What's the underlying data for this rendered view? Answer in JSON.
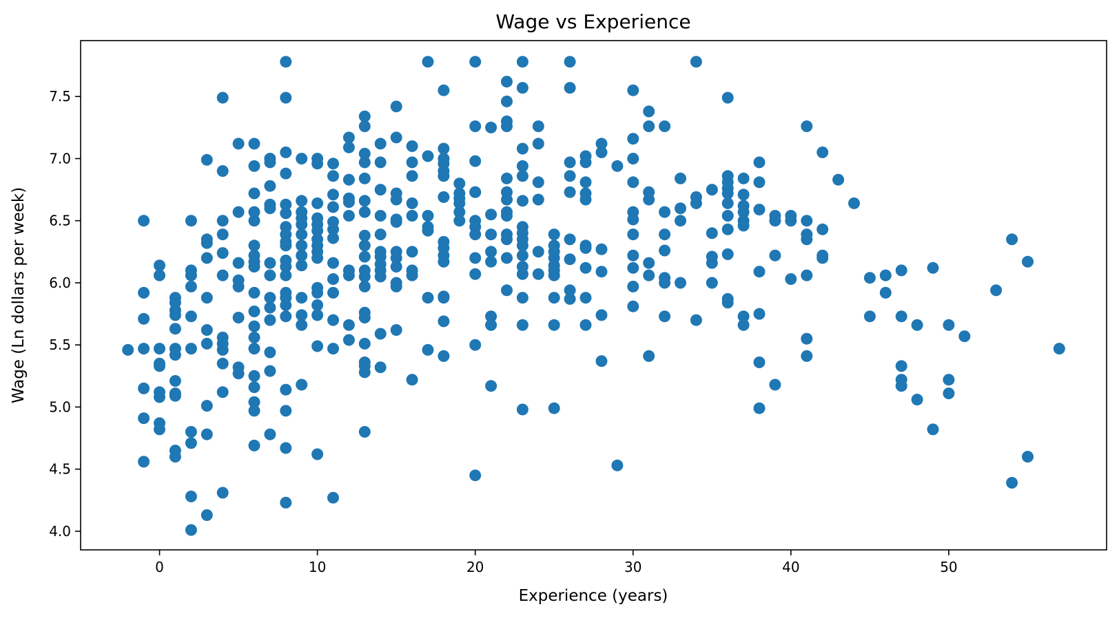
{
  "chart_data": {
    "type": "scatter",
    "title": "Wage vs Experience",
    "xlabel": "Experience (years)",
    "ylabel": "Wage (Ln dollars per week)",
    "xlim": [
      -5,
      60
    ],
    "ylim": [
      3.85,
      7.95
    ],
    "xticks": [
      0,
      10,
      20,
      30,
      40,
      50
    ],
    "yticks": [
      4.0,
      4.5,
      5.0,
      5.5,
      6.0,
      6.5,
      7.0,
      7.5
    ],
    "grid": false,
    "marker_color": "#1f77b4",
    "points": [
      [
        -2,
        5.46
      ],
      [
        -1,
        6.5
      ],
      [
        -1,
        5.92
      ],
      [
        -1,
        5.71
      ],
      [
        -1,
        5.47
      ],
      [
        -1,
        5.15
      ],
      [
        -1,
        4.91
      ],
      [
        -1,
        4.56
      ],
      [
        0,
        6.14
      ],
      [
        0,
        6.06
      ],
      [
        0,
        5.47
      ],
      [
        0,
        5.35
      ],
      [
        0,
        5.33
      ],
      [
        0,
        5.12
      ],
      [
        0,
        5.08
      ],
      [
        0,
        4.87
      ],
      [
        0,
        4.82
      ],
      [
        1,
        5.88
      ],
      [
        1,
        5.84
      ],
      [
        1,
        5.78
      ],
      [
        1,
        5.74
      ],
      [
        1,
        5.63
      ],
      [
        1,
        5.47
      ],
      [
        1,
        5.42
      ],
      [
        1,
        5.21
      ],
      [
        1,
        5.11
      ],
      [
        1,
        5.09
      ],
      [
        1,
        4.65
      ],
      [
        1,
        4.6
      ],
      [
        2,
        6.5
      ],
      [
        2,
        6.1
      ],
      [
        2,
        6.06
      ],
      [
        2,
        5.97
      ],
      [
        2,
        5.73
      ],
      [
        2,
        5.47
      ],
      [
        2,
        4.8
      ],
      [
        2,
        4.71
      ],
      [
        2,
        4.28
      ],
      [
        2,
        4.01
      ],
      [
        3,
        6.99
      ],
      [
        3,
        6.35
      ],
      [
        3,
        6.32
      ],
      [
        3,
        6.2
      ],
      [
        3,
        5.88
      ],
      [
        3,
        5.62
      ],
      [
        3,
        5.51
      ],
      [
        3,
        5.01
      ],
      [
        3,
        4.78
      ],
      [
        3,
        4.13
      ],
      [
        4,
        7.49
      ],
      [
        4,
        6.9
      ],
      [
        4,
        6.5
      ],
      [
        4,
        6.39
      ],
      [
        4,
        6.24
      ],
      [
        4,
        6.06
      ],
      [
        4,
        5.56
      ],
      [
        4,
        5.51
      ],
      [
        4,
        5.46
      ],
      [
        4,
        5.35
      ],
      [
        4,
        5.12
      ],
      [
        4,
        4.31
      ],
      [
        5,
        7.12
      ],
      [
        5,
        6.57
      ],
      [
        5,
        6.16
      ],
      [
        5,
        6.02
      ],
      [
        5,
        5.97
      ],
      [
        5,
        5.72
      ],
      [
        5,
        5.32
      ],
      [
        5,
        5.27
      ],
      [
        6,
        7.12
      ],
      [
        6,
        6.94
      ],
      [
        6,
        6.72
      ],
      [
        6,
        6.57
      ],
      [
        6,
        6.5
      ],
      [
        6,
        6.3
      ],
      [
        6,
        6.22
      ],
      [
        6,
        6.17
      ],
      [
        6,
        6.13
      ],
      [
        6,
        5.92
      ],
      [
        6,
        5.77
      ],
      [
        6,
        5.65
      ],
      [
        6,
        5.56
      ],
      [
        6,
        5.47
      ],
      [
        6,
        5.25
      ],
      [
        6,
        5.16
      ],
      [
        6,
        5.04
      ],
      [
        6,
        4.97
      ],
      [
        6,
        4.69
      ],
      [
        7,
        7.0
      ],
      [
        7,
        6.97
      ],
      [
        7,
        6.78
      ],
      [
        7,
        6.63
      ],
      [
        7,
        6.6
      ],
      [
        7,
        6.16
      ],
      [
        7,
        6.06
      ],
      [
        7,
        5.88
      ],
      [
        7,
        5.8
      ],
      [
        7,
        5.7
      ],
      [
        7,
        5.44
      ],
      [
        7,
        5.29
      ],
      [
        7,
        4.78
      ],
      [
        8,
        7.78
      ],
      [
        8,
        7.49
      ],
      [
        8,
        7.05
      ],
      [
        8,
        6.88
      ],
      [
        8,
        6.63
      ],
      [
        8,
        6.56
      ],
      [
        8,
        6.45
      ],
      [
        8,
        6.39
      ],
      [
        8,
        6.33
      ],
      [
        8,
        6.3
      ],
      [
        8,
        6.18
      ],
      [
        8,
        6.13
      ],
      [
        8,
        6.06
      ],
      [
        8,
        5.92
      ],
      [
        8,
        5.88
      ],
      [
        8,
        5.82
      ],
      [
        8,
        5.73
      ],
      [
        8,
        5.14
      ],
      [
        8,
        4.97
      ],
      [
        8,
        4.67
      ],
      [
        8,
        4.23
      ],
      [
        9,
        7.0
      ],
      [
        9,
        6.66
      ],
      [
        9,
        6.57
      ],
      [
        9,
        6.52
      ],
      [
        9,
        6.47
      ],
      [
        9,
        6.39
      ],
      [
        9,
        6.3
      ],
      [
        9,
        6.22
      ],
      [
        9,
        6.14
      ],
      [
        9,
        5.88
      ],
      [
        9,
        5.74
      ],
      [
        9,
        5.66
      ],
      [
        9,
        5.18
      ],
      [
        10,
        7.0
      ],
      [
        10,
        6.96
      ],
      [
        10,
        6.64
      ],
      [
        10,
        6.52
      ],
      [
        10,
        6.47
      ],
      [
        10,
        6.42
      ],
      [
        10,
        6.35
      ],
      [
        10,
        6.3
      ],
      [
        10,
        6.25
      ],
      [
        10,
        6.2
      ],
      [
        10,
        5.96
      ],
      [
        10,
        5.92
      ],
      [
        10,
        5.82
      ],
      [
        10,
        5.74
      ],
      [
        10,
        5.49
      ],
      [
        10,
        4.62
      ],
      [
        11,
        6.96
      ],
      [
        11,
        6.86
      ],
      [
        11,
        6.71
      ],
      [
        11,
        6.61
      ],
      [
        11,
        6.49
      ],
      [
        11,
        6.43
      ],
      [
        11,
        6.36
      ],
      [
        11,
        6.16
      ],
      [
        11,
        6.03
      ],
      [
        11,
        5.92
      ],
      [
        11,
        5.7
      ],
      [
        11,
        5.47
      ],
      [
        11,
        4.27
      ],
      [
        12,
        7.17
      ],
      [
        12,
        7.09
      ],
      [
        12,
        6.83
      ],
      [
        12,
        6.68
      ],
      [
        12,
        6.65
      ],
      [
        12,
        6.54
      ],
      [
        12,
        6.1
      ],
      [
        12,
        6.06
      ],
      [
        12,
        5.66
      ],
      [
        12,
        5.54
      ],
      [
        13,
        7.34
      ],
      [
        13,
        7.26
      ],
      [
        13,
        7.04
      ],
      [
        13,
        6.97
      ],
      [
        13,
        6.84
      ],
      [
        13,
        6.66
      ],
      [
        13,
        6.57
      ],
      [
        13,
        6.38
      ],
      [
        13,
        6.3
      ],
      [
        13,
        6.21
      ],
      [
        13,
        6.1
      ],
      [
        13,
        6.05
      ],
      [
        13,
        5.97
      ],
      [
        13,
        5.76
      ],
      [
        13,
        5.72
      ],
      [
        13,
        5.51
      ],
      [
        13,
        5.36
      ],
      [
        13,
        5.33
      ],
      [
        13,
        5.28
      ],
      [
        13,
        4.8
      ],
      [
        14,
        7.12
      ],
      [
        14,
        6.97
      ],
      [
        14,
        6.75
      ],
      [
        14,
        6.54
      ],
      [
        14,
        6.39
      ],
      [
        14,
        6.25
      ],
      [
        14,
        6.21
      ],
      [
        14,
        6.15
      ],
      [
        14,
        6.1
      ],
      [
        14,
        6.05
      ],
      [
        14,
        5.59
      ],
      [
        14,
        5.32
      ],
      [
        15,
        7.42
      ],
      [
        15,
        7.17
      ],
      [
        15,
        6.72
      ],
      [
        15,
        6.67
      ],
      [
        15,
        6.51
      ],
      [
        15,
        6.49
      ],
      [
        15,
        6.25
      ],
      [
        15,
        6.2
      ],
      [
        15,
        6.13
      ],
      [
        15,
        6.0
      ],
      [
        15,
        5.97
      ],
      [
        15,
        5.62
      ],
      [
        16,
        7.1
      ],
      [
        16,
        6.97
      ],
      [
        16,
        6.86
      ],
      [
        16,
        6.64
      ],
      [
        16,
        6.54
      ],
      [
        16,
        6.25
      ],
      [
        16,
        6.1
      ],
      [
        16,
        6.06
      ],
      [
        16,
        5.22
      ],
      [
        17,
        7.78
      ],
      [
        17,
        7.02
      ],
      [
        17,
        6.54
      ],
      [
        17,
        6.45
      ],
      [
        17,
        6.42
      ],
      [
        17,
        5.88
      ],
      [
        17,
        5.46
      ],
      [
        18,
        7.55
      ],
      [
        18,
        7.08
      ],
      [
        18,
        7.0
      ],
      [
        18,
        6.96
      ],
      [
        18,
        6.9
      ],
      [
        18,
        6.86
      ],
      [
        18,
        6.69
      ],
      [
        18,
        6.33
      ],
      [
        18,
        6.28
      ],
      [
        18,
        6.22
      ],
      [
        18,
        6.17
      ],
      [
        18,
        5.89
      ],
      [
        18,
        5.88
      ],
      [
        18,
        5.69
      ],
      [
        18,
        5.41
      ],
      [
        19,
        6.8
      ],
      [
        19,
        6.72
      ],
      [
        19,
        6.68
      ],
      [
        19,
        6.64
      ],
      [
        19,
        6.57
      ],
      [
        19,
        6.5
      ],
      [
        20,
        7.78
      ],
      [
        20,
        7.26
      ],
      [
        20,
        6.98
      ],
      [
        20,
        6.73
      ],
      [
        20,
        6.73
      ],
      [
        20,
        6.5
      ],
      [
        20,
        6.45
      ],
      [
        20,
        6.39
      ],
      [
        20,
        6.2
      ],
      [
        20,
        6.07
      ],
      [
        20,
        5.5
      ],
      [
        20,
        4.45
      ],
      [
        21,
        7.25
      ],
      [
        21,
        6.55
      ],
      [
        21,
        6.39
      ],
      [
        21,
        6.25
      ],
      [
        21,
        6.17
      ],
      [
        21,
        5.73
      ],
      [
        21,
        5.66
      ],
      [
        21,
        5.17
      ],
      [
        22,
        7.62
      ],
      [
        22,
        7.46
      ],
      [
        22,
        7.3
      ],
      [
        22,
        7.26
      ],
      [
        22,
        6.84
      ],
      [
        22,
        6.73
      ],
      [
        22,
        6.67
      ],
      [
        22,
        6.57
      ],
      [
        22,
        6.54
      ],
      [
        22,
        6.39
      ],
      [
        22,
        6.35
      ],
      [
        22,
        6.2
      ],
      [
        22,
        5.94
      ],
      [
        23,
        7.78
      ],
      [
        23,
        7.57
      ],
      [
        23,
        7.08
      ],
      [
        23,
        6.94
      ],
      [
        23,
        6.86
      ],
      [
        23,
        6.66
      ],
      [
        23,
        6.45
      ],
      [
        23,
        6.4
      ],
      [
        23,
        6.35
      ],
      [
        23,
        6.3
      ],
      [
        23,
        6.22
      ],
      [
        23,
        6.13
      ],
      [
        23,
        6.07
      ],
      [
        23,
        5.88
      ],
      [
        23,
        5.66
      ],
      [
        23,
        4.98
      ],
      [
        24,
        7.26
      ],
      [
        24,
        7.12
      ],
      [
        24,
        6.81
      ],
      [
        24,
        6.67
      ],
      [
        24,
        6.25
      ],
      [
        24,
        6.07
      ],
      [
        25,
        6.39
      ],
      [
        25,
        6.3
      ],
      [
        25,
        6.25
      ],
      [
        25,
        6.2
      ],
      [
        25,
        6.14
      ],
      [
        25,
        6.1
      ],
      [
        25,
        6.06
      ],
      [
        25,
        5.88
      ],
      [
        25,
        5.66
      ],
      [
        25,
        4.99
      ],
      [
        26,
        7.78
      ],
      [
        26,
        7.57
      ],
      [
        26,
        6.97
      ],
      [
        26,
        6.86
      ],
      [
        26,
        6.73
      ],
      [
        26,
        6.35
      ],
      [
        26,
        6.19
      ],
      [
        26,
        5.94
      ],
      [
        26,
        5.87
      ],
      [
        27,
        7.02
      ],
      [
        27,
        6.97
      ],
      [
        27,
        6.81
      ],
      [
        27,
        6.72
      ],
      [
        27,
        6.67
      ],
      [
        27,
        6.3
      ],
      [
        27,
        6.28
      ],
      [
        27,
        6.12
      ],
      [
        27,
        5.88
      ],
      [
        27,
        5.66
      ],
      [
        28,
        7.12
      ],
      [
        28,
        7.05
      ],
      [
        28,
        6.27
      ],
      [
        28,
        6.09
      ],
      [
        28,
        5.74
      ],
      [
        28,
        5.37
      ],
      [
        29,
        6.94
      ],
      [
        29,
        4.53
      ],
      [
        30,
        7.55
      ],
      [
        30,
        7.16
      ],
      [
        30,
        7.0
      ],
      [
        30,
        6.81
      ],
      [
        30,
        6.57
      ],
      [
        30,
        6.51
      ],
      [
        30,
        6.39
      ],
      [
        30,
        6.22
      ],
      [
        30,
        6.12
      ],
      [
        30,
        5.97
      ],
      [
        30,
        5.81
      ],
      [
        31,
        7.38
      ],
      [
        31,
        7.26
      ],
      [
        31,
        6.73
      ],
      [
        31,
        6.67
      ],
      [
        31,
        6.16
      ],
      [
        31,
        6.06
      ],
      [
        31,
        5.41
      ],
      [
        32,
        7.26
      ],
      [
        32,
        6.57
      ],
      [
        32,
        6.39
      ],
      [
        32,
        6.26
      ],
      [
        32,
        6.04
      ],
      [
        32,
        6.0
      ],
      [
        32,
        5.73
      ],
      [
        33,
        6.84
      ],
      [
        33,
        6.6
      ],
      [
        33,
        6.5
      ],
      [
        33,
        6.0
      ],
      [
        34,
        7.78
      ],
      [
        34,
        6.69
      ],
      [
        34,
        6.64
      ],
      [
        34,
        5.7
      ],
      [
        35,
        6.75
      ],
      [
        35,
        6.4
      ],
      [
        35,
        6.21
      ],
      [
        35,
        6.16
      ],
      [
        35,
        6.0
      ],
      [
        36,
        7.49
      ],
      [
        36,
        6.86
      ],
      [
        36,
        6.81
      ],
      [
        36,
        6.76
      ],
      [
        36,
        6.72
      ],
      [
        36,
        6.64
      ],
      [
        36,
        6.54
      ],
      [
        36,
        6.43
      ],
      [
        36,
        6.23
      ],
      [
        36,
        5.87
      ],
      [
        36,
        5.84
      ],
      [
        37,
        6.84
      ],
      [
        37,
        6.71
      ],
      [
        37,
        6.62
      ],
      [
        37,
        6.57
      ],
      [
        37,
        6.5
      ],
      [
        37,
        6.46
      ],
      [
        37,
        5.73
      ],
      [
        37,
        5.66
      ],
      [
        38,
        6.97
      ],
      [
        38,
        6.81
      ],
      [
        38,
        6.59
      ],
      [
        38,
        6.09
      ],
      [
        38,
        5.75
      ],
      [
        38,
        5.36
      ],
      [
        38,
        4.99
      ],
      [
        39,
        6.54
      ],
      [
        39,
        6.5
      ],
      [
        39,
        6.22
      ],
      [
        39,
        5.18
      ],
      [
        40,
        6.54
      ],
      [
        40,
        6.5
      ],
      [
        40,
        6.03
      ],
      [
        41,
        7.26
      ],
      [
        41,
        6.5
      ],
      [
        41,
        6.39
      ],
      [
        41,
        6.35
      ],
      [
        41,
        6.06
      ],
      [
        41,
        5.55
      ],
      [
        41,
        5.41
      ],
      [
        42,
        7.05
      ],
      [
        42,
        6.43
      ],
      [
        42,
        6.22
      ],
      [
        42,
        6.2
      ],
      [
        43,
        6.83
      ],
      [
        44,
        6.64
      ],
      [
        45,
        6.04
      ],
      [
        45,
        5.73
      ],
      [
        46,
        6.06
      ],
      [
        46,
        5.92
      ],
      [
        47,
        6.1
      ],
      [
        47,
        5.73
      ],
      [
        47,
        5.33
      ],
      [
        47,
        5.22
      ],
      [
        47,
        5.17
      ],
      [
        48,
        5.66
      ],
      [
        48,
        5.06
      ],
      [
        49,
        6.12
      ],
      [
        49,
        4.82
      ],
      [
        50,
        5.66
      ],
      [
        50,
        5.22
      ],
      [
        50,
        5.11
      ],
      [
        51,
        5.57
      ],
      [
        53,
        5.94
      ],
      [
        54,
        6.35
      ],
      [
        54,
        4.39
      ],
      [
        55,
        6.17
      ],
      [
        55,
        4.6
      ],
      [
        57,
        5.47
      ]
    ]
  }
}
